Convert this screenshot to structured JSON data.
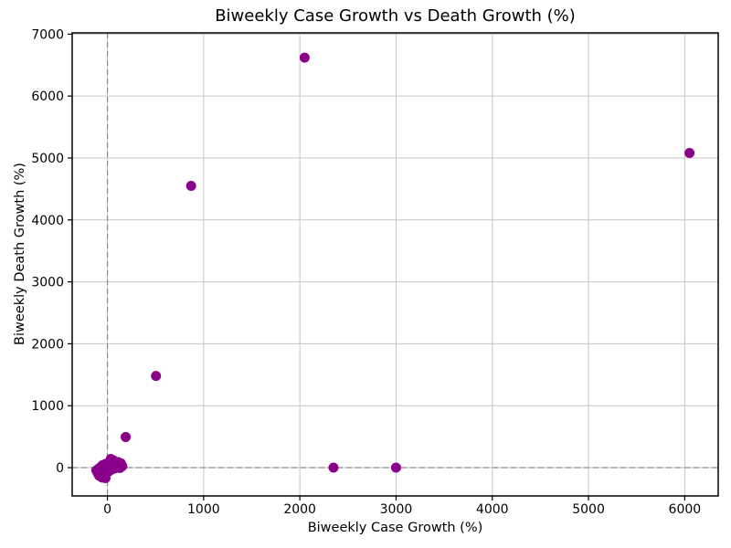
{
  "title": "Biweekly Case Growth vs Death Growth (%)",
  "colors": {
    "marker": "#8B008B",
    "grid": "#c6c6c6",
    "zero_line": "#888888",
    "spine": "#000000",
    "background": "#ffffff",
    "text": "#000000"
  },
  "chart_data": {
    "type": "scatter",
    "title": "Biweekly Case Growth vs Death Growth (%)",
    "xlabel": "Biweekly Case Growth (%)",
    "ylabel": "Biweekly Death Growth (%)",
    "x_ticks": [
      0,
      1000,
      2000,
      3000,
      4000,
      5000,
      6000
    ],
    "y_ticks": [
      0,
      1000,
      2000,
      3000,
      4000,
      5000,
      6000,
      7000
    ],
    "xlim": [
      -366,
      6348
    ],
    "ylim": [
      -457,
      7020
    ],
    "grid": true,
    "zero_reference_lines": {
      "x": 0,
      "y": 0
    },
    "marker_radius_px": 5.5,
    "legend": false,
    "points": [
      [
        -115,
        -45
      ],
      [
        -100,
        -90
      ],
      [
        -95,
        -20
      ],
      [
        -85,
        -130
      ],
      [
        -80,
        -55
      ],
      [
        -70,
        10
      ],
      [
        -65,
        -100
      ],
      [
        -60,
        -30
      ],
      [
        -55,
        -160
      ],
      [
        -50,
        40
      ],
      [
        -45,
        -75
      ],
      [
        -40,
        -5
      ],
      [
        -35,
        -120
      ],
      [
        -30,
        25
      ],
      [
        -25,
        -50
      ],
      [
        -20,
        60
      ],
      [
        -15,
        -95
      ],
      [
        -10,
        5
      ],
      [
        -5,
        -35
      ],
      [
        0,
        45
      ],
      [
        5,
        -15
      ],
      [
        10,
        80
      ],
      [
        15,
        -60
      ],
      [
        20,
        20
      ],
      [
        25,
        100
      ],
      [
        30,
        -40
      ],
      [
        35,
        55
      ],
      [
        40,
        5
      ],
      [
        50,
        -25
      ],
      [
        55,
        75
      ],
      [
        60,
        120
      ],
      [
        70,
        35
      ],
      [
        80,
        -10
      ],
      [
        90,
        60
      ],
      [
        100,
        15
      ],
      [
        110,
        90
      ],
      [
        120,
        45
      ],
      [
        130,
        -5
      ],
      [
        140,
        70
      ],
      [
        155,
        25
      ],
      [
        35,
        140
      ],
      [
        -20,
        -170
      ],
      [
        190,
        495
      ],
      [
        505,
        1480
      ],
      [
        870,
        4550
      ],
      [
        2050,
        6620
      ],
      [
        2350,
        0
      ],
      [
        3000,
        0
      ],
      [
        6050,
        5080
      ]
    ]
  }
}
